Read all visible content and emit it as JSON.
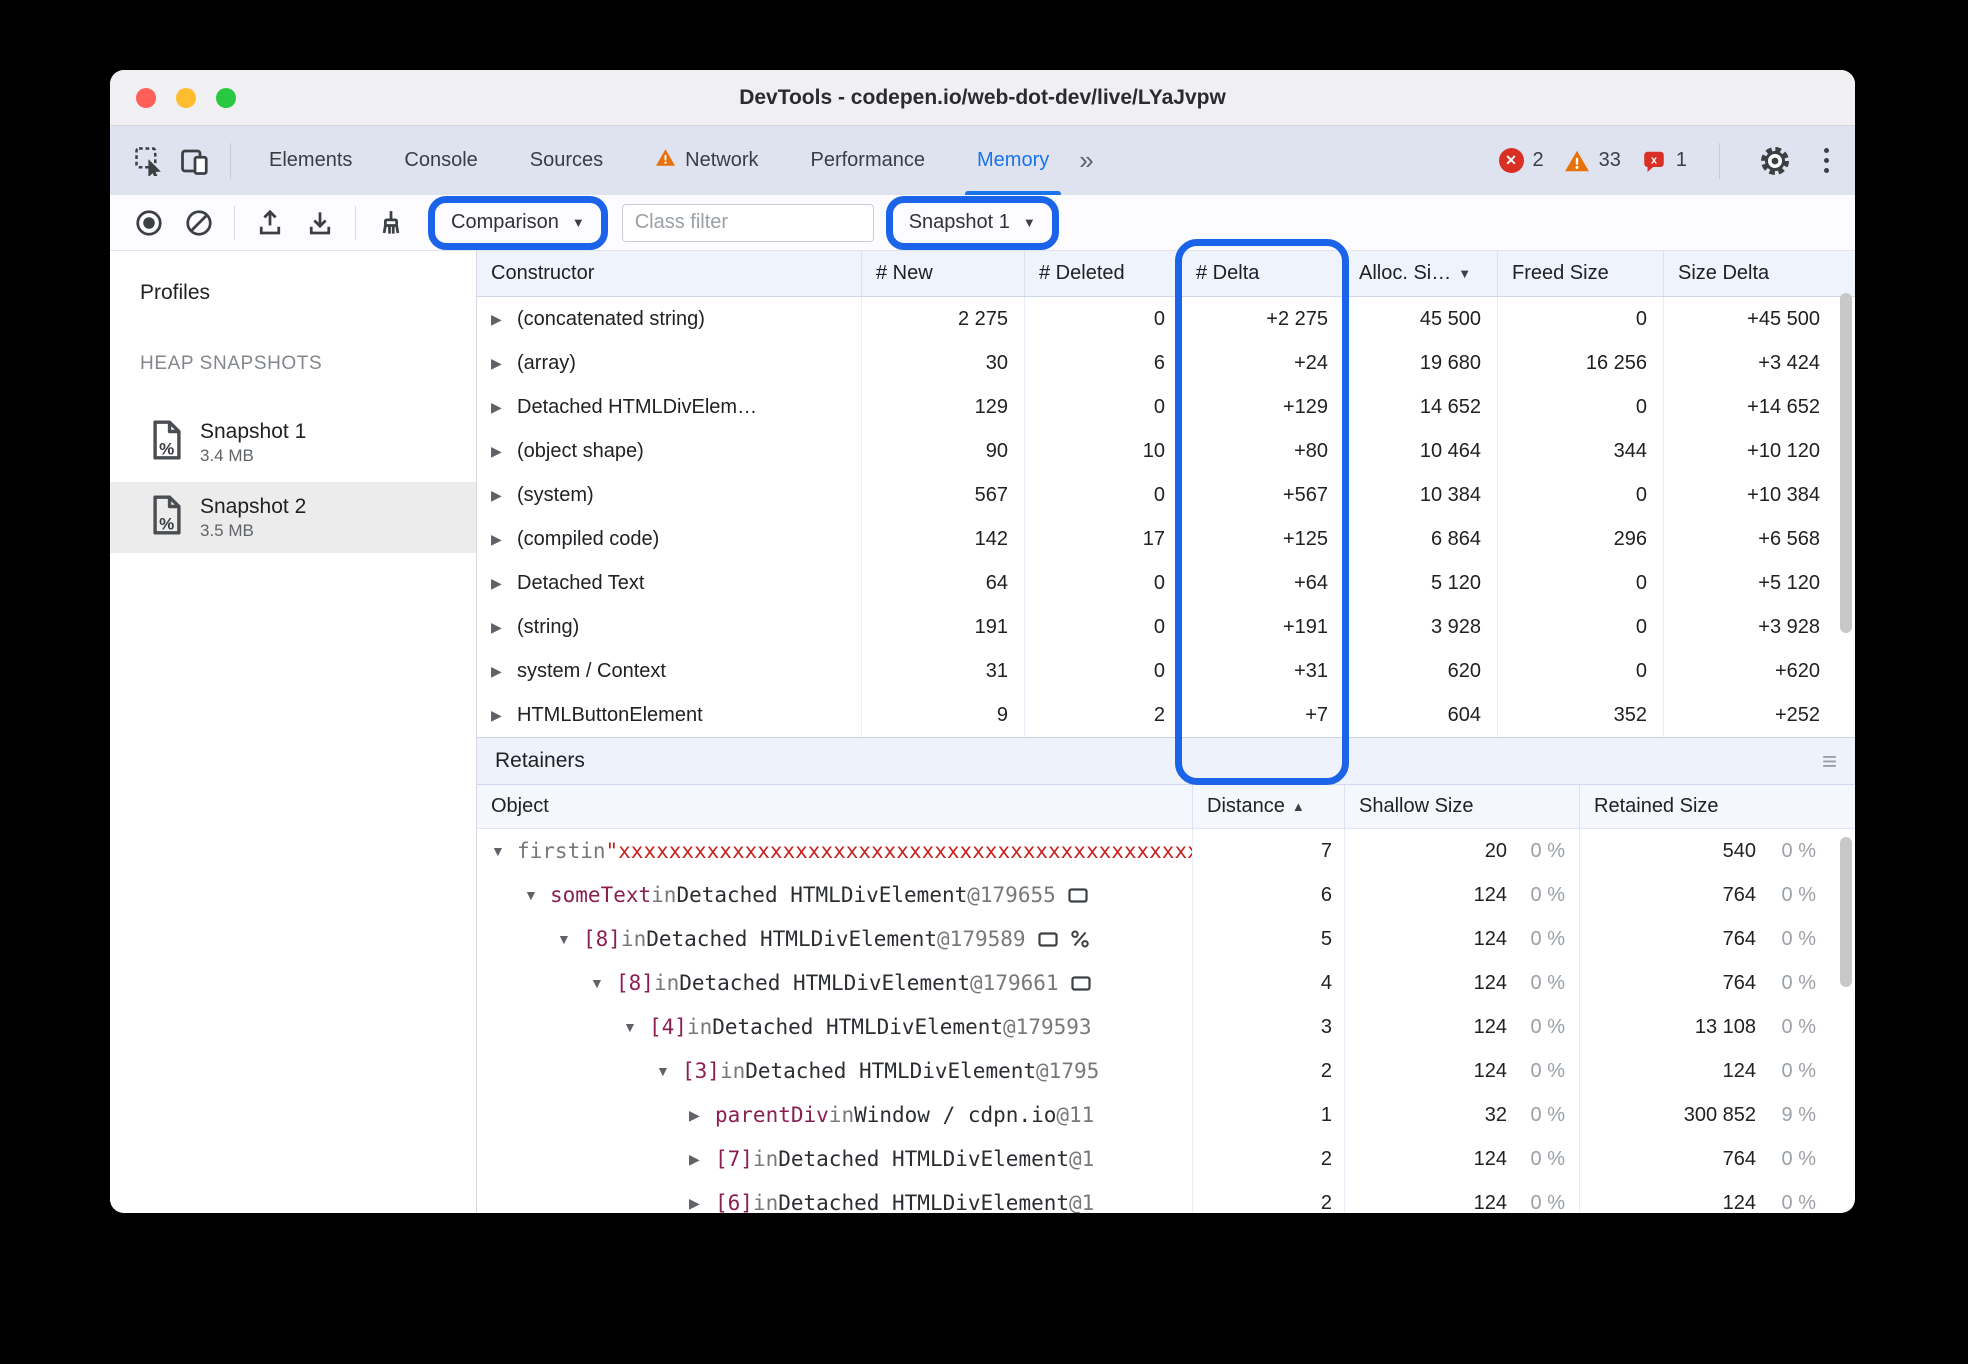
{
  "window": {
    "title": "DevTools - codepen.io/web-dot-dev/live/LYaJvpw"
  },
  "colors": {
    "accent": "#1a73e8",
    "annotation": "#1b63e8",
    "error": "#d93025",
    "warning": "#e8710a"
  },
  "icons": {
    "collapse": "▼",
    "expand": "▶",
    "sort_asc": "▲",
    "sort_desc": "▼",
    "dropdown_caret": "▼",
    "overflow_chevrons": "»",
    "hamburger": "≡",
    "close_x": "✕"
  },
  "tabbar": {
    "tabs": [
      {
        "label": "Elements"
      },
      {
        "label": "Console"
      },
      {
        "label": "Sources"
      },
      {
        "label": "Network",
        "warning": true
      },
      {
        "label": "Performance"
      },
      {
        "label": "Memory",
        "active": true
      }
    ],
    "badges": {
      "error_count": "2",
      "warning_count": "33",
      "issue_count": "1"
    }
  },
  "toolbar": {
    "comparison": {
      "label": "Comparison"
    },
    "class_filter": {
      "placeholder": "Class filter"
    },
    "snapshot": {
      "label": "Snapshot 1"
    }
  },
  "sidebar": {
    "title": "Profiles",
    "section_label": "HEAP SNAPSHOTS",
    "snapshots": [
      {
        "name": "Snapshot 1",
        "size": "3.4 MB",
        "selected": false
      },
      {
        "name": "Snapshot 2",
        "size": "3.5 MB",
        "selected": true
      }
    ]
  },
  "comparison_grid": {
    "columns": [
      {
        "label": "Constructor"
      },
      {
        "label": "# New"
      },
      {
        "label": "# Deleted"
      },
      {
        "label": "# Delta",
        "highlighted": true
      },
      {
        "label": "Alloc. Si…",
        "sort": "desc"
      },
      {
        "label": "Freed Size"
      },
      {
        "label": "Size Delta"
      }
    ],
    "rows": [
      {
        "constructor": "(concatenated string)",
        "new": "2 275",
        "deleted": "0",
        "delta": "+2 275",
        "alloc_size": "45 500",
        "freed_size": "0",
        "size_delta": "+45 500"
      },
      {
        "constructor": "(array)",
        "new": "30",
        "deleted": "6",
        "delta": "+24",
        "alloc_size": "19 680",
        "freed_size": "16 256",
        "size_delta": "+3 424"
      },
      {
        "constructor": "Detached HTMLDivElem…",
        "new": "129",
        "deleted": "0",
        "delta": "+129",
        "alloc_size": "14 652",
        "freed_size": "0",
        "size_delta": "+14 652"
      },
      {
        "constructor": "(object shape)",
        "new": "90",
        "deleted": "10",
        "delta": "+80",
        "alloc_size": "10 464",
        "freed_size": "344",
        "size_delta": "+10 120"
      },
      {
        "constructor": "(system)",
        "new": "567",
        "deleted": "0",
        "delta": "+567",
        "alloc_size": "10 384",
        "freed_size": "0",
        "size_delta": "+10 384"
      },
      {
        "constructor": "(compiled code)",
        "new": "142",
        "deleted": "17",
        "delta": "+125",
        "alloc_size": "6 864",
        "freed_size": "296",
        "size_delta": "+6 568"
      },
      {
        "constructor": "Detached Text",
        "new": "64",
        "deleted": "0",
        "delta": "+64",
        "alloc_size": "5 120",
        "freed_size": "0",
        "size_delta": "+5 120"
      },
      {
        "constructor": "(string)",
        "new": "191",
        "deleted": "0",
        "delta": "+191",
        "alloc_size": "3 928",
        "freed_size": "0",
        "size_delta": "+3 928"
      },
      {
        "constructor": "system / Context",
        "new": "31",
        "deleted": "0",
        "delta": "+31",
        "alloc_size": "620",
        "freed_size": "0",
        "size_delta": "+620"
      },
      {
        "constructor": "HTMLButtonElement",
        "new": "9",
        "deleted": "2",
        "delta": "+7",
        "alloc_size": "604",
        "freed_size": "352",
        "size_delta": "+252"
      }
    ]
  },
  "retainers": {
    "title": "Retainers",
    "columns": [
      {
        "label": "Object"
      },
      {
        "label": "Distance",
        "sort": "asc"
      },
      {
        "label": "Shallow Size"
      },
      {
        "label": "Retained Size"
      }
    ],
    "rows": [
      {
        "depth": 0,
        "arrow": "collapse",
        "icons": [],
        "segments": [
          {
            "text": "first",
            "style": "dim"
          },
          {
            "text": " in ",
            "style": "dim"
          },
          {
            "text": "\"xxxxxxxxxxxxxxxxxxxxxxxxxxxxxxxxxxxxxxxxxxxxxxxxxxxxxxxxxxxx",
            "style": "string"
          }
        ],
        "distance": "7",
        "shallow_size": "20",
        "shallow_pct": "0 %",
        "retained_size": "540",
        "retained_pct": "0 %"
      },
      {
        "depth": 1,
        "arrow": "collapse",
        "icons": [
          "element"
        ],
        "segments": [
          {
            "text": "someText",
            "style": "prop"
          },
          {
            "text": " in ",
            "style": "dim"
          },
          {
            "text": "Detached HTMLDivElement",
            "style": "obj"
          },
          {
            "text": " @179655",
            "style": "dim"
          }
        ],
        "distance": "6",
        "shallow_size": "124",
        "shallow_pct": "0 %",
        "retained_size": "764",
        "retained_pct": "0 %"
      },
      {
        "depth": 2,
        "arrow": "collapse",
        "icons": [
          "element",
          "scissors"
        ],
        "segments": [
          {
            "text": "[8]",
            "style": "prop"
          },
          {
            "text": " in ",
            "style": "dim"
          },
          {
            "text": "Detached HTMLDivElement",
            "style": "obj"
          },
          {
            "text": " @179589",
            "style": "dim"
          }
        ],
        "distance": "5",
        "shallow_size": "124",
        "shallow_pct": "0 %",
        "retained_size": "764",
        "retained_pct": "0 %"
      },
      {
        "depth": 3,
        "arrow": "collapse",
        "icons": [
          "element"
        ],
        "segments": [
          {
            "text": "[8]",
            "style": "prop"
          },
          {
            "text": " in ",
            "style": "dim"
          },
          {
            "text": "Detached HTMLDivElement",
            "style": "obj"
          },
          {
            "text": " @179661",
            "style": "dim"
          }
        ],
        "distance": "4",
        "shallow_size": "124",
        "shallow_pct": "0 %",
        "retained_size": "764",
        "retained_pct": "0 %"
      },
      {
        "depth": 4,
        "arrow": "collapse",
        "icons": [],
        "segments": [
          {
            "text": "[4]",
            "style": "prop"
          },
          {
            "text": " in ",
            "style": "dim"
          },
          {
            "text": "Detached HTMLDivElement",
            "style": "obj"
          },
          {
            "text": " @179593",
            "style": "dim"
          }
        ],
        "distance": "3",
        "shallow_size": "124",
        "shallow_pct": "0 %",
        "retained_size": "13 108",
        "retained_pct": "0 %"
      },
      {
        "depth": 5,
        "arrow": "collapse",
        "icons": [],
        "segments": [
          {
            "text": "[3]",
            "style": "prop"
          },
          {
            "text": " in ",
            "style": "dim"
          },
          {
            "text": "Detached HTMLDivElement",
            "style": "obj"
          },
          {
            "text": " @1795",
            "style": "dim"
          }
        ],
        "distance": "2",
        "shallow_size": "124",
        "shallow_pct": "0 %",
        "retained_size": "124",
        "retained_pct": "0 %"
      },
      {
        "depth": 6,
        "arrow": "expand",
        "icons": [],
        "segments": [
          {
            "text": "parentDiv",
            "style": "prop"
          },
          {
            "text": " in ",
            "style": "dim"
          },
          {
            "text": "Window / cdpn.io",
            "style": "obj"
          },
          {
            "text": " @11",
            "style": "dim"
          }
        ],
        "distance": "1",
        "shallow_size": "32",
        "shallow_pct": "0 %",
        "retained_size": "300 852",
        "retained_pct": "9 %"
      },
      {
        "depth": 6,
        "arrow": "expand",
        "icons": [],
        "segments": [
          {
            "text": "[7]",
            "style": "prop"
          },
          {
            "text": " in ",
            "style": "dim"
          },
          {
            "text": "Detached HTMLDivElement",
            "style": "obj"
          },
          {
            "text": " @1",
            "style": "dim"
          }
        ],
        "distance": "2",
        "shallow_size": "124",
        "shallow_pct": "0 %",
        "retained_size": "764",
        "retained_pct": "0 %"
      },
      {
        "depth": 6,
        "arrow": "expand",
        "icons": [],
        "segments": [
          {
            "text": "[6]",
            "style": "prop"
          },
          {
            "text": " in ",
            "style": "dim"
          },
          {
            "text": "Detached HTMLDivElement",
            "style": "obj"
          },
          {
            "text": " @1",
            "style": "dim"
          }
        ],
        "distance": "2",
        "shallow_size": "124",
        "shallow_pct": "0 %",
        "retained_size": "124",
        "retained_pct": "0 %"
      }
    ]
  }
}
